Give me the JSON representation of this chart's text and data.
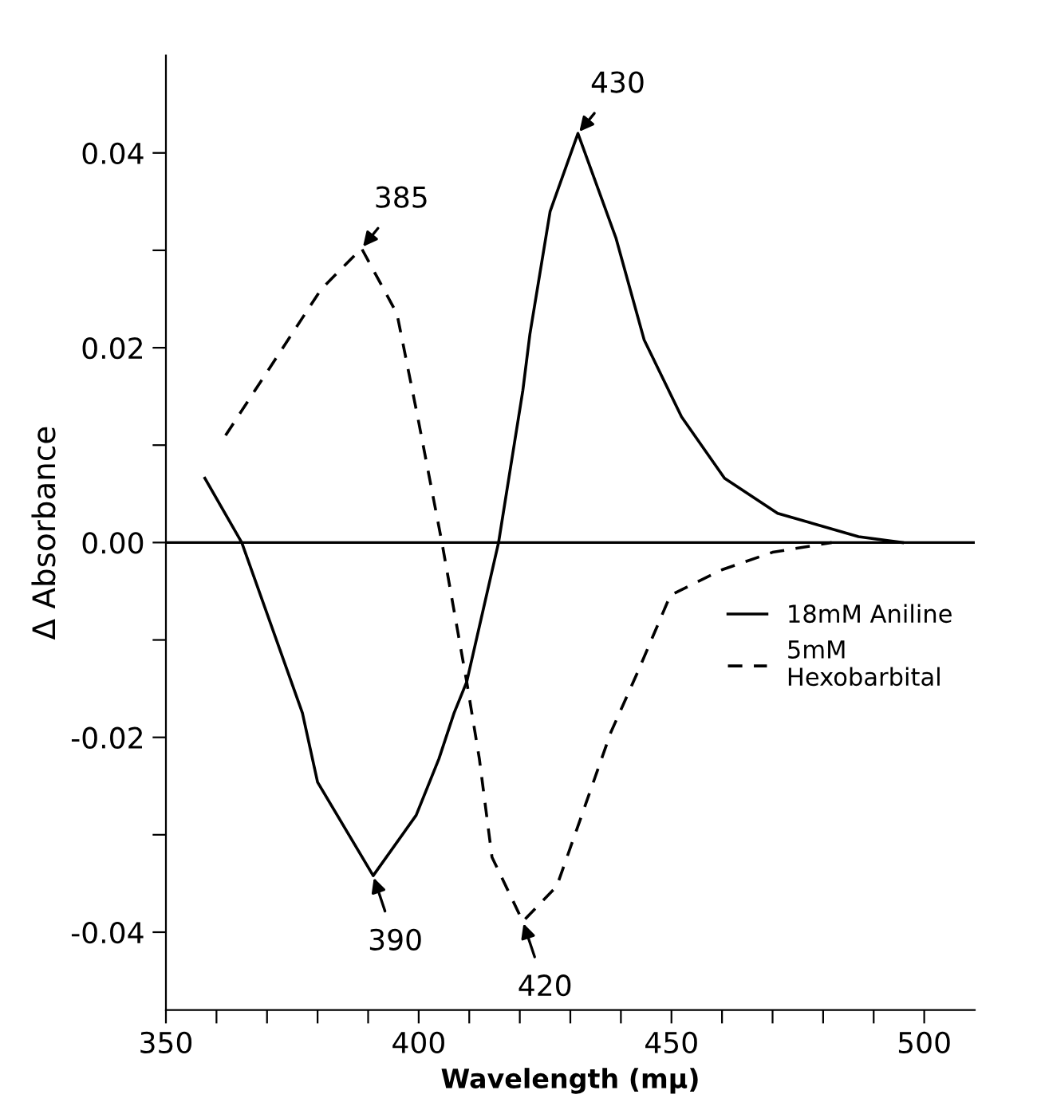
{
  "chart_data": {
    "type": "line",
    "xlabel": "Wavelength (mμ)",
    "ylabel": "Δ Absorbance",
    "xlim": [
      350,
      510
    ],
    "ylim": [
      -0.048,
      0.05
    ],
    "xticks": [
      350,
      {
        "value": 360,
        "label": null
      },
      {
        "value": 370,
        "label": null
      },
      {
        "value": 380,
        "label": null
      },
      {
        "value": 390,
        "label": null
      },
      400,
      {
        "value": 410,
        "label": null
      },
      {
        "value": 420,
        "label": null
      },
      {
        "value": 430,
        "label": null
      },
      {
        "value": 440,
        "label": null
      },
      450,
      {
        "value": 460,
        "label": null
      },
      {
        "value": 470,
        "label": null
      },
      {
        "value": 480,
        "label": null
      },
      {
        "value": 490,
        "label": null
      },
      500
    ],
    "yticks": [
      {
        "value": -0.04,
        "label": "-0.04"
      },
      {
        "value": -0.03,
        "label": null
      },
      {
        "value": -0.02,
        "label": "-0.02"
      },
      {
        "value": -0.01,
        "label": null
      },
      {
        "value": 0,
        "label": "0.00"
      },
      {
        "value": 0.01,
        "label": null
      },
      {
        "value": 0.02,
        "label": "0.02"
      },
      {
        "value": 0.03,
        "label": null
      },
      {
        "value": 0.04,
        "label": "0.04"
      }
    ],
    "grid": false,
    "legend": "right",
    "marker": "none",
    "series": [
      {
        "name": "18mM Aniline",
        "color": "#000000",
        "line_style": "solid",
        "x": [
          357.7,
          365,
          377,
          380,
          391,
          399.5,
          404,
          407,
          409.5,
          415.8,
          419,
          420.6,
          422,
          426,
          431.5,
          439,
          444.6,
          452,
          460.5,
          471,
          487,
          495.7
        ],
        "values": [
          0.0066,
          0,
          -0.0175,
          -0.0246,
          -0.0342,
          -0.028,
          -0.0222,
          -0.0175,
          -0.0143,
          0,
          0.0104,
          0.0156,
          0.0214,
          0.034,
          0.042,
          0.0313,
          0.0208,
          0.0129,
          0.0066,
          0.003,
          0.0006,
          0
        ]
      },
      {
        "name": "5mM\nHexobarbital",
        "color": "#000000",
        "line_style": "dashed",
        "x": [
          361.8,
          380.7,
          388.7,
          395.7,
          399.8,
          404.6,
          409.5,
          412,
          414.5,
          420.6,
          427.3,
          433,
          438,
          443.4,
          449.8,
          460,
          470,
          481.7
        ],
        "values": [
          0.011,
          0.026,
          0.0302,
          0.0235,
          0.0129,
          0,
          -0.0143,
          -0.0222,
          -0.0323,
          -0.0389,
          -0.0353,
          -0.0269,
          -0.0195,
          -0.0132,
          -0.0054,
          -0.0028,
          -0.001,
          0
        ]
      }
    ],
    "ref_lines": [
      {
        "axis": "y",
        "value": 0,
        "color": "#000000",
        "line_style": "solid"
      }
    ],
    "annotations": [
      {
        "text": "385",
        "x": 388.7,
        "y": 0.0302
      },
      {
        "text": "430",
        "x": 431.5,
        "y": 0.042
      },
      {
        "text": "390",
        "x": 391,
        "y": -0.0342
      },
      {
        "text": "420",
        "x": 420.6,
        "y": -0.0389
      }
    ]
  }
}
